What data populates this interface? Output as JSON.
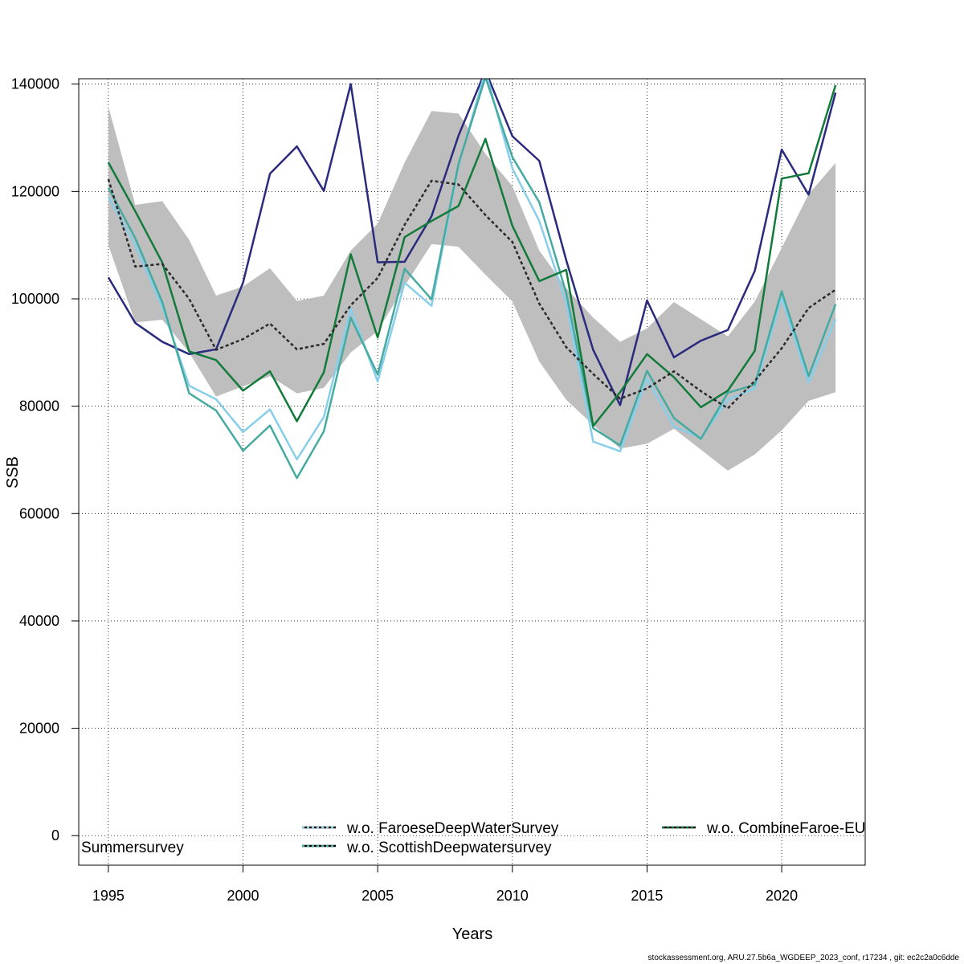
{
  "chart_data": {
    "type": "line",
    "xlabel": "Years",
    "ylabel": "SSB",
    "xlim": [
      1993.9,
      2023.1
    ],
    "ylim": [
      -5500,
      141000
    ],
    "x_ticks": [
      1995,
      2000,
      2005,
      2010,
      2015,
      2020
    ],
    "y_ticks": [
      0,
      20000,
      40000,
      60000,
      80000,
      100000,
      120000,
      140000
    ],
    "grid": true,
    "x": [
      1995,
      1996,
      1997,
      1998,
      1999,
      2000,
      2001,
      2002,
      2003,
      2004,
      2005,
      2006,
      2007,
      2008,
      2009,
      2010,
      2011,
      2012,
      2013,
      2014,
      2015,
      2016,
      2017,
      2018,
      2019,
      2020,
      2021,
      2022
    ],
    "band": {
      "color": "#bebebe",
      "upper": [
        135800,
        117500,
        118200,
        111000,
        100600,
        102300,
        105700,
        99600,
        100600,
        109000,
        114000,
        125400,
        135000,
        134500,
        127000,
        121000,
        109000,
        102000,
        96500,
        92000,
        94500,
        99400,
        96200,
        93000,
        99500,
        109500,
        119500,
        125300
      ],
      "lower": [
        110000,
        95600,
        96100,
        90000,
        81800,
        83700,
        85600,
        82400,
        83400,
        90000,
        94000,
        102400,
        110200,
        109700,
        104500,
        99500,
        88300,
        81200,
        76500,
        72100,
        73000,
        75800,
        71900,
        68000,
        71000,
        75500,
        81000,
        82600
      ]
    },
    "series": [
      {
        "name": "",
        "color": "#2a2a2a",
        "dash": true,
        "values": [
          122300,
          106000,
          106500,
          100000,
          90500,
          92500,
          95400,
          90600,
          91600,
          98800,
          103900,
          113800,
          122000,
          121300,
          115600,
          110600,
          99100,
          91000,
          86000,
          81400,
          83300,
          86500,
          82800,
          79600,
          84700,
          90800,
          98300,
          101700
        ]
      },
      {
        "name": "Summersurvey",
        "color": "#2a2a7e",
        "dash": false,
        "values": [
          104000,
          95500,
          92000,
          89700,
          90600,
          103000,
          123300,
          128400,
          120100,
          140000,
          106800,
          106900,
          115400,
          130400,
          142500,
          130300,
          125700,
          107200,
          90500,
          80200,
          99700,
          89100,
          92200,
          94200,
          105200,
          127800,
          119400,
          138400
        ]
      },
      {
        "name": "w.o. FaroeseDeepWaterSurvey",
        "color": "#87ceeb",
        "dash": false,
        "values": [
          119000,
          110000,
          98500,
          83800,
          81300,
          75200,
          79400,
          70100,
          78000,
          98200,
          84600,
          103000,
          98700,
          124800,
          142500,
          124300,
          114500,
          99300,
          73400,
          71600,
          85100,
          76200,
          74100,
          81200,
          83300,
          100200,
          84400,
          96200
        ]
      },
      {
        "name": "w.o. ScottishDeepwatersurvey",
        "color": "#45aaa0",
        "dash": false,
        "values": [
          120700,
          111300,
          99400,
          82400,
          79200,
          71700,
          76400,
          66600,
          75300,
          96500,
          85900,
          105600,
          99900,
          125100,
          141300,
          126400,
          118000,
          101100,
          75900,
          72700,
          86600,
          77800,
          73900,
          82500,
          84000,
          101400,
          85600,
          99000
        ]
      },
      {
        "name": "w.o. CombineFaroe-EU",
        "color": "#127a3a",
        "dash": false,
        "values": [
          125400,
          116300,
          106800,
          90200,
          88600,
          82900,
          86500,
          77200,
          86300,
          108300,
          92800,
          111500,
          114500,
          117300,
          129800,
          113600,
          103300,
          105400,
          76300,
          82600,
          89700,
          85400,
          79800,
          82900,
          90300,
          122400,
          123400,
          139800
        ]
      }
    ],
    "legend": {
      "placement": "bottom",
      "items": [
        {
          "label": "Summersurvey",
          "color": "#2a2a7e"
        },
        {
          "label": "w.o. FaroeseDeepWaterSurvey",
          "color": "#87ceeb"
        },
        {
          "label": "w.o. ScottishDeepwatersurvey",
          "color": "#45aaa0"
        },
        {
          "label": "w.o. CombineFaroe-EU",
          "color": "#127a3a"
        }
      ]
    }
  },
  "footer": "stockassessment.org, ARU.27.5b6a_WGDEEP_2023_conf, r17234 , git: ec2c2a0c6dde"
}
